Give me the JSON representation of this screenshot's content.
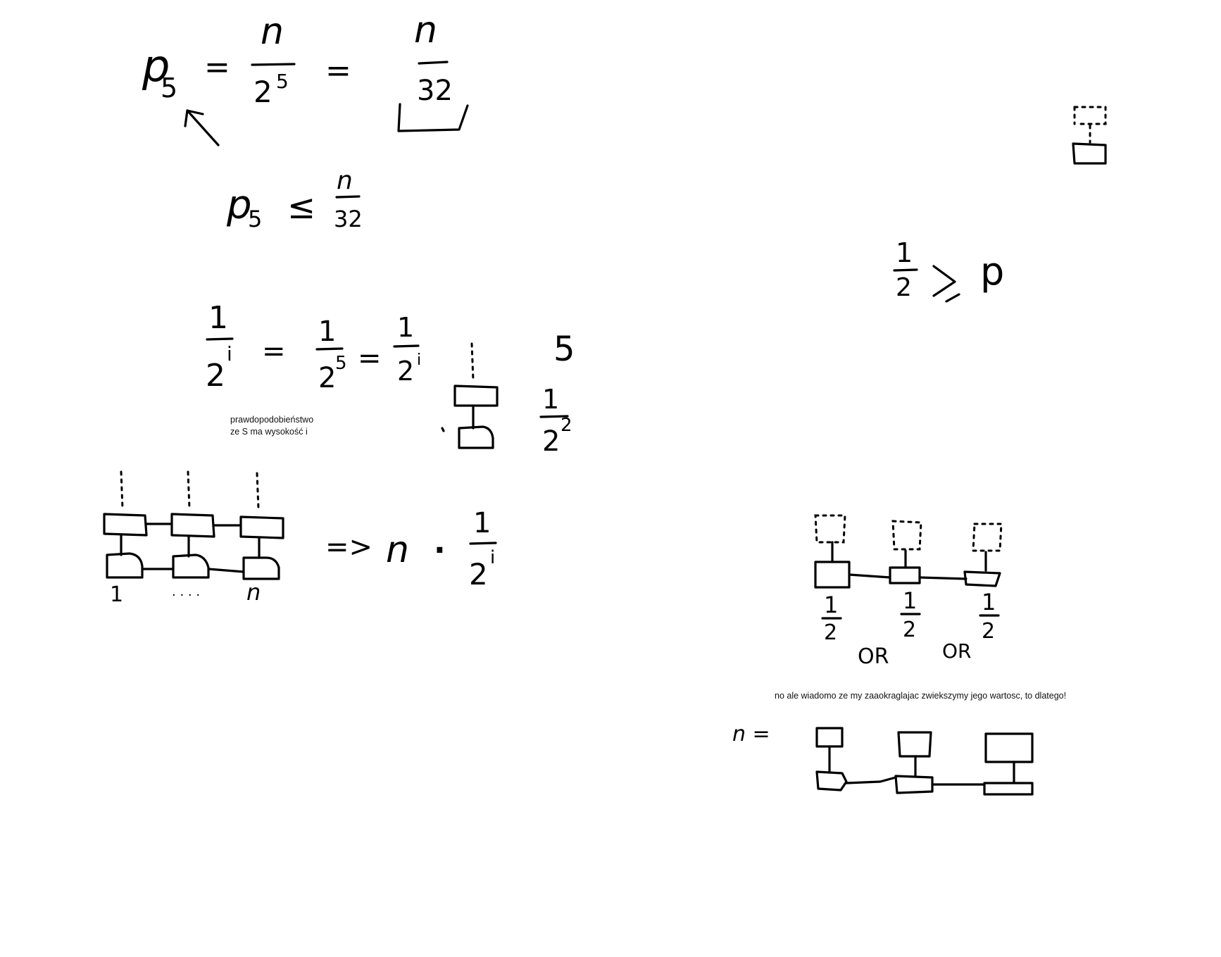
{
  "notes": {
    "probability_line1": "prawdopodobieństwo",
    "probability_line2": "ze S ma wysokość i",
    "rounding": "no ale wiadomo ze my zaaokraglajac zwiekszymy jego wartosc, to dlatego!"
  },
  "handwriting": {
    "p5": "p",
    "sub5": "5",
    "eq": "=",
    "n": "n",
    "two": "2",
    "exp5": "5",
    "thirty_two": "32",
    "leq": "≤",
    "one": "1",
    "exp_i": "i",
    "five": "5",
    "exp2": "2",
    "half_gt_p": "p",
    "gt": ">",
    "implies": "=>",
    "dot": "·",
    "label_1": "1",
    "label_dots": ". . . .",
    "label_n": "n",
    "or1": "OR",
    "or2": "OR",
    "n_eq": "n ="
  },
  "colors": {
    "ink": "#000000",
    "background": "#ffffff"
  }
}
